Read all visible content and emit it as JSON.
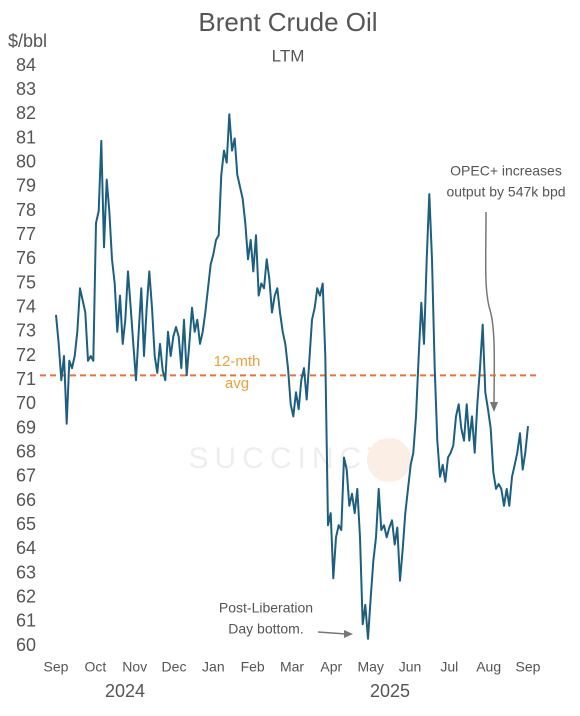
{
  "chart_data": {
    "type": "line",
    "title": "Brent Crude Oil",
    "subtitle": "LTM",
    "y_unit": "$/bbl",
    "watermark": "SUCCINCT",
    "month_labels": [
      "Sep",
      "Oct",
      "Nov",
      "Dec",
      "Jan",
      "Feb",
      "Mar",
      "Apr",
      "May",
      "Jun",
      "Jul",
      "Aug",
      "Sep"
    ],
    "year_labels": [
      "2024",
      "2025"
    ],
    "ylim": [
      60,
      84
    ],
    "yticks": [
      60,
      61,
      62,
      63,
      64,
      65,
      66,
      67,
      68,
      69,
      70,
      71,
      72,
      73,
      74,
      75,
      76,
      77,
      78,
      79,
      80,
      81,
      82,
      83,
      84
    ],
    "series": [
      {
        "name": "Brent",
        "color": "#1d5f80",
        "values": [
          73.7,
          72.5,
          71.0,
          72.0,
          69.2,
          71.8,
          71.5,
          72.0,
          73.0,
          74.8,
          74.3,
          73.8,
          71.8,
          72.0,
          71.8,
          77.5,
          78.0,
          80.9,
          76.5,
          79.3,
          78.0,
          76.0,
          75.0,
          73.0,
          74.5,
          72.5,
          73.5,
          75.5,
          74.0,
          72.5,
          71.0,
          73.0,
          74.8,
          72.0,
          74.0,
          75.5,
          74.0,
          72.0,
          71.3,
          72.5,
          71.4,
          71.0,
          73.0,
          72.0,
          72.8,
          73.2,
          72.8,
          71.5,
          73.5,
          71.2,
          72.5,
          74.0,
          73.0,
          73.5,
          72.5,
          73.0,
          73.8,
          74.8,
          75.8,
          76.2,
          76.8,
          77.0,
          79.5,
          80.5,
          80.0,
          82.0,
          80.5,
          81.0,
          79.5,
          79.0,
          78.5,
          77.5,
          76.0,
          76.8,
          75.5,
          77.0,
          74.5,
          75.0,
          74.8,
          76.0,
          75.2,
          73.8,
          74.5,
          74.8,
          73.8,
          73.0,
          72.5,
          71.5,
          70.0,
          69.5,
          70.5,
          69.8,
          71.0,
          71.5,
          70.2,
          71.8,
          73.5,
          74.0,
          74.8,
          74.5,
          75.0,
          72.0,
          65.0,
          65.5,
          62.8,
          64.5,
          65.0,
          64.8,
          67.8,
          67.3,
          65.8,
          66.3,
          65.5,
          66.5,
          64.5,
          60.9,
          61.7,
          60.3,
          62.0,
          63.5,
          64.5,
          66.5,
          64.8,
          65.0,
          64.5,
          64.9,
          65.2,
          64.2,
          64.9,
          62.7,
          64.0,
          65.5,
          66.5,
          67.5,
          68.0,
          69.5,
          72.0,
          74.2,
          72.5,
          76.0,
          78.7,
          76.0,
          71.5,
          68.5,
          67.0,
          67.5,
          66.8,
          67.8,
          68.0,
          68.3,
          69.5,
          70.0,
          69.0,
          68.5,
          70.0,
          68.5,
          69.5,
          68.0,
          70.0,
          71.5,
          73.3,
          70.5,
          69.8,
          69.0,
          67.2,
          66.5,
          66.7,
          66.5,
          65.8,
          66.5,
          65.8,
          67.0,
          67.5,
          68.0,
          68.8,
          67.3,
          68.0,
          69.1
        ]
      }
    ],
    "average": {
      "value": 71.2,
      "color": "#e8743b",
      "label": [
        "12-mth",
        "avg"
      ],
      "label_color": "#e8a23b"
    },
    "annotations": [
      {
        "lines": [
          "OPEC+ increases",
          "output by 547k bpd"
        ]
      },
      {
        "lines": [
          "Post-Liberation",
          "Day bottom."
        ]
      }
    ]
  }
}
